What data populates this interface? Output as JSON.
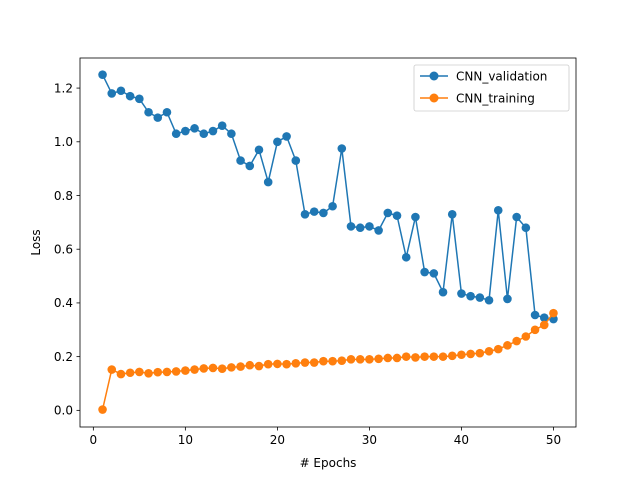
{
  "chart_data": {
    "type": "line",
    "xlabel": "# Epochs",
    "ylabel": "Loss",
    "xlim": [
      -1.45,
      52.45
    ],
    "ylim": [
      -0.062,
      1.312
    ],
    "xticks": [
      0,
      10,
      20,
      30,
      40,
      50
    ],
    "yticks": [
      0.0,
      0.2,
      0.4,
      0.6,
      0.8,
      1.0,
      1.2
    ],
    "xtick_labels": [
      "0",
      "10",
      "20",
      "30",
      "40",
      "50"
    ],
    "ytick_labels": [
      "0.0",
      "0.2",
      "0.4",
      "0.6",
      "0.8",
      "1.0",
      "1.2"
    ],
    "grid": false,
    "legend_position": "top-right",
    "x": [
      1,
      2,
      3,
      4,
      5,
      6,
      7,
      8,
      9,
      10,
      11,
      12,
      13,
      14,
      15,
      16,
      17,
      18,
      19,
      20,
      21,
      22,
      23,
      24,
      25,
      26,
      27,
      28,
      29,
      30,
      31,
      32,
      33,
      34,
      35,
      36,
      37,
      38,
      39,
      40,
      41,
      42,
      43,
      44,
      45,
      46,
      47,
      48,
      49,
      50
    ],
    "series": [
      {
        "name": "CNN_validation",
        "color": "#1f77b4",
        "values": [
          1.25,
          1.18,
          1.19,
          1.17,
          1.16,
          1.11,
          1.09,
          1.11,
          1.03,
          1.04,
          1.05,
          1.03,
          1.04,
          1.06,
          1.03,
          0.93,
          0.91,
          0.97,
          0.85,
          1.0,
          1.02,
          0.93,
          0.73,
          0.74,
          0.735,
          0.76,
          0.975,
          0.685,
          0.68,
          0.685,
          0.67,
          0.735,
          0.725,
          0.57,
          0.72,
          0.515,
          0.51,
          0.44,
          0.73,
          0.435,
          0.425,
          0.42,
          0.41,
          0.745,
          0.415,
          0.72,
          0.68,
          0.355,
          0.345,
          0.34
        ]
      },
      {
        "name": "CNN_training",
        "color": "#ff7f0e",
        "values": [
          0.003,
          0.152,
          0.135,
          0.14,
          0.143,
          0.138,
          0.142,
          0.143,
          0.145,
          0.148,
          0.152,
          0.156,
          0.158,
          0.155,
          0.16,
          0.163,
          0.168,
          0.165,
          0.172,
          0.173,
          0.172,
          0.175,
          0.178,
          0.178,
          0.183,
          0.183,
          0.185,
          0.19,
          0.19,
          0.19,
          0.192,
          0.195,
          0.195,
          0.2,
          0.197,
          0.2,
          0.2,
          0.2,
          0.203,
          0.207,
          0.21,
          0.213,
          0.22,
          0.228,
          0.242,
          0.258,
          0.275,
          0.3,
          0.318,
          0.362
        ]
      }
    ]
  }
}
